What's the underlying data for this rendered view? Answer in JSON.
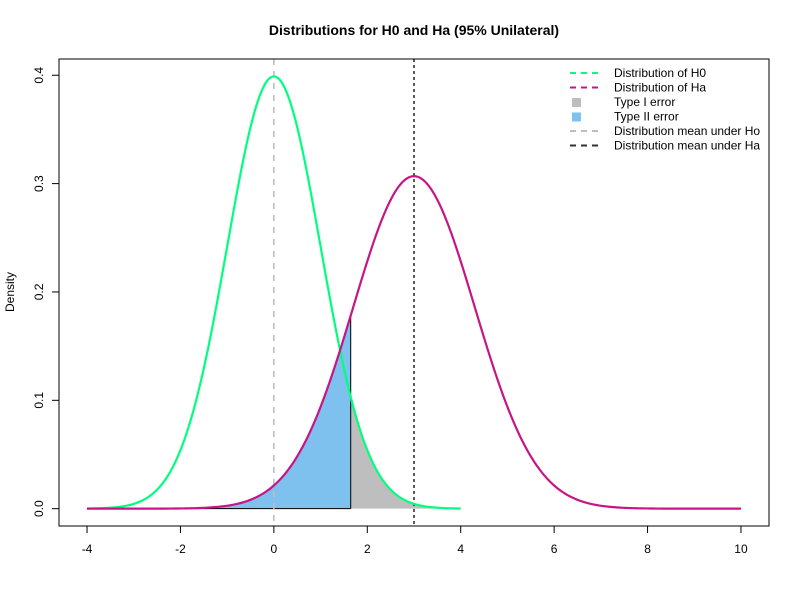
{
  "chart_data": {
    "type": "line",
    "title": "Distributions for H0 and Ha (95% Unilateral)",
    "xlabel": "",
    "ylabel": "Density",
    "xlim": [
      -4.6,
      10.6
    ],
    "ylim": [
      -0.016,
      0.415
    ],
    "x_ticks": [
      -4,
      -2,
      0,
      2,
      4,
      6,
      8,
      10
    ],
    "y_ticks": [
      0.0,
      0.1,
      0.2,
      0.3,
      0.4
    ],
    "x_tick_labels": [
      "-4",
      "-2",
      "0",
      "2",
      "4",
      "6",
      "8",
      "10"
    ],
    "y_tick_labels": [
      "0.0",
      "0.1",
      "0.2",
      "0.3",
      "0.4"
    ],
    "grid": false,
    "legend_position": "top-right",
    "series": [
      {
        "name": "Distribution of H0",
        "distribution": "normal",
        "mean": 0,
        "sd": 1,
        "x_range": [
          -4,
          4
        ],
        "color": "#00ff7f",
        "peak_density": 0.399
      },
      {
        "name": "Distribution of Ha",
        "distribution": "normal",
        "mean": 3,
        "sd": 1.3,
        "x_range": [
          -4,
          10
        ],
        "color": "#c71585",
        "peak_density": 0.307
      }
    ],
    "regions": [
      {
        "name": "Type I error",
        "x_range": [
          1.645,
          4
        ],
        "under": "Distribution of H0",
        "color": "#bebebe"
      },
      {
        "name": "Type II error",
        "x_range": [
          -4,
          1.645
        ],
        "under": "Distribution of Ha",
        "color": "#7ec0ee"
      }
    ],
    "critical_value": 1.645,
    "reference_lines": [
      {
        "name": "Distribution mean under Ho",
        "x": 0,
        "color": "#bebebe",
        "style": "dashed"
      },
      {
        "name": "Distribution mean under Ha",
        "x": 3,
        "color": "#333333",
        "style": "dotted"
      }
    ],
    "legend": [
      {
        "label": "Distribution of H0",
        "kind": "line",
        "color": "#00ff7f"
      },
      {
        "label": "Distribution of Ha",
        "kind": "line",
        "color": "#c71585"
      },
      {
        "label": "Type I error",
        "kind": "box",
        "color": "#bebebe"
      },
      {
        "label": "Type II error",
        "kind": "box",
        "color": "#7ec0ee"
      },
      {
        "label": "Distribution mean under Ho",
        "kind": "line",
        "color": "#bebebe"
      },
      {
        "label": "Distribution mean under Ha",
        "kind": "line",
        "color": "#333333"
      }
    ]
  }
}
